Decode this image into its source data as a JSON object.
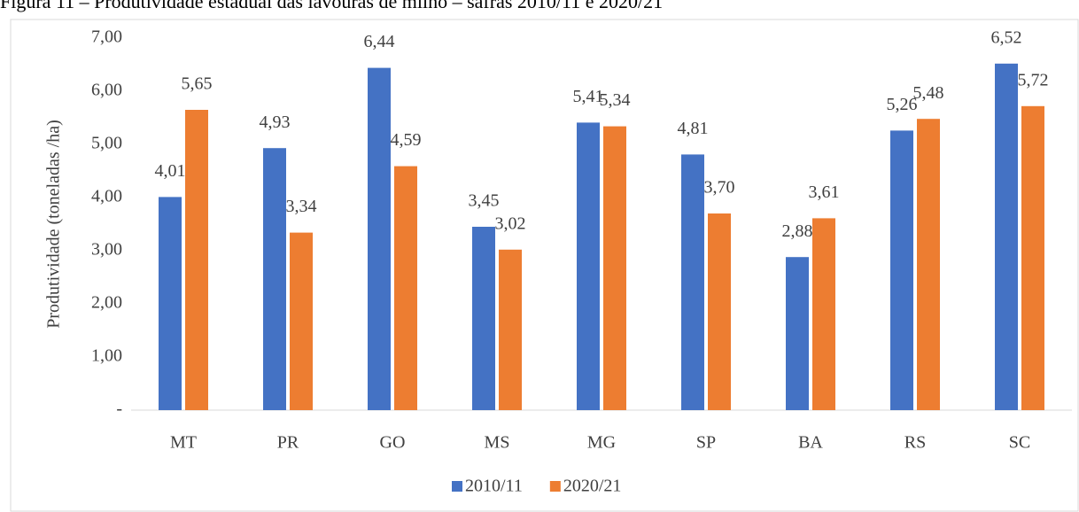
{
  "chart_data": {
    "type": "bar",
    "title": "Figura 11 – Produtividade estadual das lavouras de milho – safras 2010/11 e 2020/21",
    "y_label": "Produtividade (toneladas /ha)",
    "categories": [
      "MT",
      "PR",
      "GO",
      "MS",
      "MG",
      "SP",
      "BA",
      "RS",
      "SC"
    ],
    "series": [
      {
        "name": "2010/11",
        "color": "#4472c4",
        "values": [
          4.01,
          4.93,
          6.44,
          3.45,
          5.41,
          4.81,
          2.88,
          5.26,
          6.52
        ],
        "value_labels": [
          "4,01",
          "4,93",
          "6,44",
          "3,45",
          "5,41",
          "4,81",
          "2,88",
          "5,26",
          "6,52"
        ]
      },
      {
        "name": "2020/21",
        "color": "#ed7d31",
        "values": [
          5.65,
          3.34,
          4.59,
          3.02,
          5.34,
          3.7,
          3.61,
          5.48,
          5.72
        ],
        "value_labels": [
          "5,65",
          "3,34",
          "4,59",
          "3,02",
          "5,34",
          "3,70",
          "3,61",
          "5,48",
          "5,72"
        ]
      }
    ],
    "ylim": [
      0,
      7
    ],
    "yticks": [
      {
        "value": 0,
        "label": "-"
      },
      {
        "value": 1,
        "label": "1,00"
      },
      {
        "value": 2,
        "label": "2,00"
      },
      {
        "value": 3,
        "label": "3,00"
      },
      {
        "value": 4,
        "label": "4,00"
      },
      {
        "value": 5,
        "label": "5,00"
      },
      {
        "value": 6,
        "label": "6,00"
      },
      {
        "value": 7,
        "label": "7,00"
      }
    ],
    "grid": false,
    "legend": "bottom"
  }
}
